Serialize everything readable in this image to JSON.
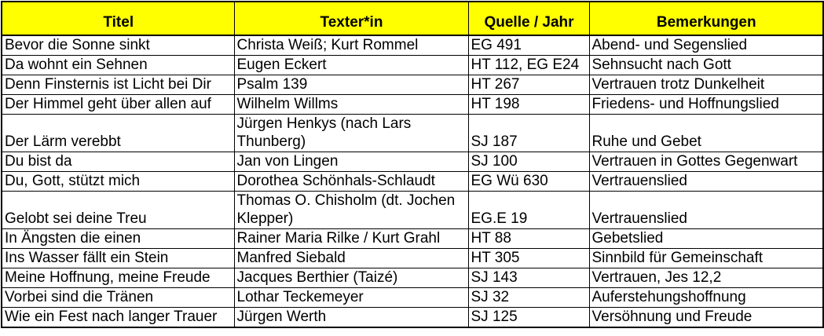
{
  "colors": {
    "header_bg": "#FFFF00",
    "border": "#000000",
    "text": "#000000",
    "row_bg": "#FFFFFF"
  },
  "table": {
    "header": {
      "columns": [
        "Titel",
        "Texter*in",
        "Quelle / Jahr",
        "Bemerkungen"
      ]
    },
    "rows": [
      {
        "titel": "Bevor die Sonne sinkt",
        "texter": "Christa Weiß; Kurt Rommel",
        "quelle": "EG 491",
        "bemerkung": "Abend- und Segenslied"
      },
      {
        "titel": "Da wohnt ein Sehnen",
        "texter": "Eugen Eckert",
        "quelle": "HT 112, EG E24",
        "bemerkung": "Sehnsucht nach Gott"
      },
      {
        "titel": "Denn Finsternis ist Licht bei Dir",
        "texter": "Psalm 139",
        "quelle": "HT 267",
        "bemerkung": "Vertrauen trotz Dunkelheit"
      },
      {
        "titel": "Der Himmel geht über allen auf",
        "texter": "Wilhelm Willms",
        "quelle": "HT 198",
        "bemerkung": "Friedens- und Hoffnungslied"
      },
      {
        "titel": "Der Lärm verebbt",
        "texter": "Jürgen Henkys (nach Lars Thunberg)",
        "quelle": "SJ 187",
        "bemerkung": "Ruhe und Gebet"
      },
      {
        "titel": "Du bist da",
        "texter": "Jan von Lingen",
        "quelle": "SJ 100",
        "bemerkung": "Vertrauen in Gottes Gegenwart"
      },
      {
        "titel": "Du, Gott, stützt mich",
        "texter": "Dorothea Schönhals-Schlaudt",
        "quelle": "EG Wü 630",
        "bemerkung": "Vertrauenslied"
      },
      {
        "titel": "Gelobt sei deine Treu",
        "texter": "Thomas O. Chisholm (dt. Jochen Klepper)",
        "quelle": "EG.E 19",
        "bemerkung": "Vertrauenslied"
      },
      {
        "titel": "In Ängsten die einen",
        "texter": "Rainer Maria Rilke / Kurt Grahl",
        "quelle": "HT 88",
        "bemerkung": "Gebetslied"
      },
      {
        "titel": "Ins Wasser fällt ein Stein",
        "texter": "Manfred Siebald",
        "quelle": "HT 305",
        "bemerkung": "Sinnbild für Gemeinschaft"
      },
      {
        "titel": "Meine Hoffnung, meine Freude",
        "texter": "Jacques Berthier (Taizé)",
        "quelle": "SJ 143",
        "bemerkung": "Vertrauen, Jes 12,2"
      },
      {
        "titel": "Vorbei sind die Tränen",
        "texter": "Lothar Teckemeyer",
        "quelle": "SJ 32",
        "bemerkung": "Auferstehungshoffnung"
      },
      {
        "titel": "Wie ein Fest nach langer Trauer",
        "texter": "Jürgen Werth",
        "quelle": "SJ 125",
        "bemerkung": "Versöhnung und Freude"
      }
    ]
  }
}
